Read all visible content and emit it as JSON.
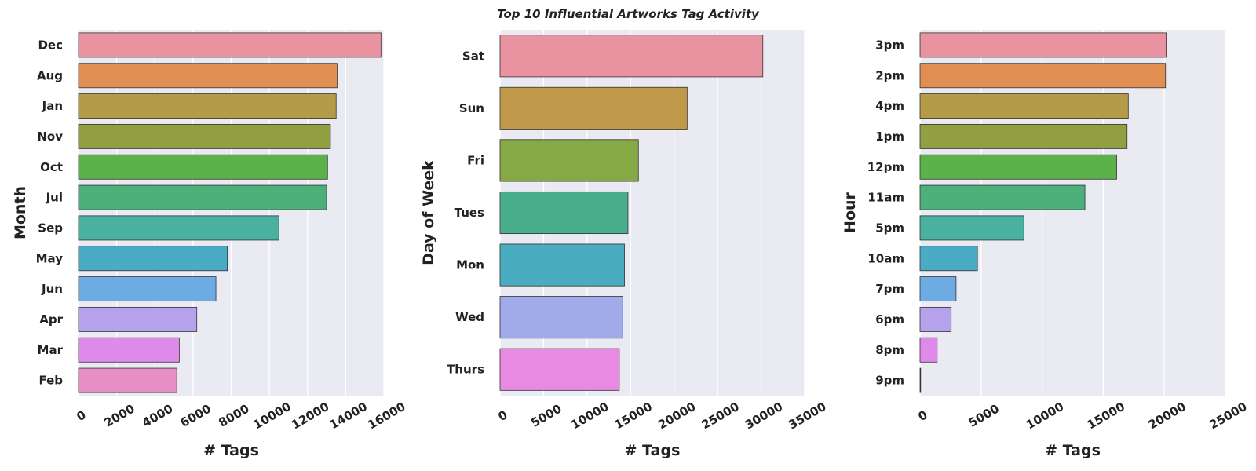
{
  "title": "Top 10 Influential Artworks Tag Activity",
  "chart_data": [
    {
      "type": "bar",
      "orientation": "horizontal",
      "xlabel": "# Tags",
      "ylabel": "Month",
      "xlim": [
        0,
        16000
      ],
      "xticks": [
        "0",
        "2000",
        "4000",
        "6000",
        "8000",
        "10000",
        "12000",
        "14000",
        "16000"
      ],
      "grid": true,
      "categories": [
        "Dec",
        "Aug",
        "Jan",
        "Nov",
        "Oct",
        "Jul",
        "Sep",
        "May",
        "Jun",
        "Apr",
        "Mar",
        "Feb"
      ],
      "values": [
        15850,
        13550,
        13500,
        13200,
        13050,
        13000,
        10500,
        7800,
        7200,
        6200,
        5280,
        5150
      ],
      "colors": [
        "#e8939f",
        "#e18e52",
        "#b59a48",
        "#929f43",
        "#5bb24a",
        "#4db07a",
        "#4ab0a0",
        "#4aacc4",
        "#6cace3",
        "#b5a2ea",
        "#df8aea",
        "#e78ec6"
      ]
    },
    {
      "type": "bar",
      "orientation": "horizontal",
      "xlabel": "# Tags",
      "ylabel": "Day of Week",
      "xlim": [
        0,
        35000
      ],
      "xticks": [
        "0",
        "5000",
        "10000",
        "15000",
        "20000",
        "25000",
        "30000",
        "35000"
      ],
      "grid": true,
      "categories": [
        "Sat",
        "Sun",
        "Fri",
        "Tues",
        "Mon",
        "Wed",
        "Thurs"
      ],
      "values": [
        30200,
        21500,
        15900,
        14700,
        14300,
        14100,
        13700
      ],
      "colors": [
        "#e8939f",
        "#c0994a",
        "#86a845",
        "#4aae8c",
        "#4aacc1",
        "#a1abea",
        "#e88ae2"
      ]
    },
    {
      "type": "bar",
      "orientation": "horizontal",
      "xlabel": "# Tags",
      "ylabel": "Hour",
      "xlim": [
        0,
        25000
      ],
      "xticks": [
        "0",
        "5000",
        "10000",
        "15000",
        "20000",
        "25000"
      ],
      "grid": true,
      "categories": [
        "3pm",
        "2pm",
        "4pm",
        "1pm",
        "12pm",
        "11am",
        "5pm",
        "10am",
        "7pm",
        "6pm",
        "8pm",
        "9pm"
      ],
      "values": [
        20150,
        20100,
        17050,
        16950,
        16100,
        13500,
        8500,
        4700,
        2950,
        2550,
        1400,
        50
      ],
      "colors": [
        "#e8939f",
        "#e18e52",
        "#b59a48",
        "#929f43",
        "#5bb24a",
        "#4db07a",
        "#4ab0a0",
        "#4aacc4",
        "#6cace3",
        "#b5a2ea",
        "#df8aea",
        "#e78ec6"
      ]
    }
  ]
}
